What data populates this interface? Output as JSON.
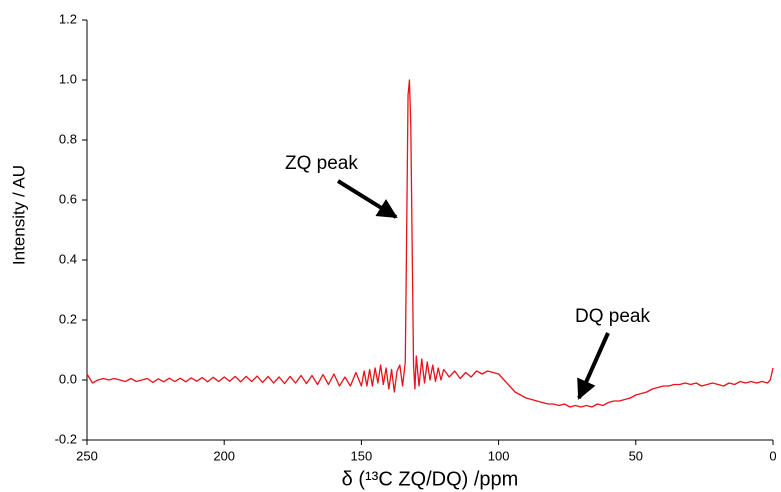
{
  "chart_data": {
    "type": "line",
    "xlabel": "δ (¹³C ZQ/DQ) /ppm",
    "ylabel": "Intensity / AU",
    "annotations": [
      "ZQ peak",
      "DQ peak"
    ],
    "color": "#e8121a",
    "xlim": [
      250,
      0
    ],
    "ylim": [
      -0.2,
      1.2
    ],
    "xticks": [
      250,
      200,
      150,
      100,
      50,
      0
    ],
    "yticks": [
      -0.2,
      {
        "value": 0,
        "label": "0.0"
      },
      0.2,
      0.4,
      0.6,
      0.8,
      {
        "value": 1,
        "label": "1.0"
      },
      1.2
    ],
    "x": [
      250,
      248,
      246,
      244,
      242,
      240,
      238,
      236,
      234,
      232,
      230,
      228,
      226,
      224,
      222,
      220,
      218,
      216,
      214,
      212,
      210,
      208,
      206,
      204,
      202,
      200,
      198,
      196,
      194,
      192,
      190,
      188,
      186,
      184,
      182,
      180,
      178,
      176,
      174,
      172,
      170,
      168,
      166,
      164,
      162,
      160,
      158,
      156,
      154,
      152,
      150,
      149,
      148,
      147,
      146,
      145,
      144,
      143,
      142,
      141,
      140,
      139,
      138,
      137,
      136,
      135,
      134,
      133.5,
      133,
      132.5,
      132,
      131.5,
      131,
      130.5,
      130,
      129,
      128,
      127,
      126,
      125,
      124,
      123,
      122,
      121,
      120,
      118,
      116,
      114,
      112,
      110,
      108,
      106,
      104,
      102,
      100,
      98,
      96,
      94,
      92,
      90,
      88,
      86,
      84,
      82,
      80,
      78,
      76,
      74,
      72,
      70,
      68,
      66,
      64,
      62,
      60,
      58,
      56,
      54,
      52,
      50,
      48,
      46,
      44,
      42,
      40,
      38,
      36,
      34,
      32,
      30,
      28,
      26,
      24,
      22,
      20,
      18,
      16,
      14,
      12,
      10,
      8,
      6,
      4,
      2,
      1,
      0
    ],
    "values": [
      0.02,
      -0.01,
      0.0,
      0.005,
      0.0,
      0.005,
      0.0,
      -0.005,
      0.005,
      -0.005,
      0.0,
      0.005,
      -0.008,
      0.004,
      -0.006,
      0.006,
      -0.005,
      0.006,
      -0.006,
      0.007,
      -0.004,
      0.008,
      -0.006,
      0.009,
      -0.005,
      0.01,
      -0.004,
      0.012,
      -0.006,
      0.012,
      -0.005,
      0.013,
      -0.008,
      0.012,
      -0.01,
      0.01,
      -0.012,
      0.012,
      -0.01,
      0.015,
      -0.012,
      0.015,
      -0.015,
      0.018,
      -0.015,
      0.02,
      -0.02,
      0.01,
      -0.02,
      0.025,
      -0.02,
      0.03,
      -0.02,
      0.035,
      -0.02,
      0.04,
      -0.01,
      0.05,
      -0.015,
      0.04,
      -0.03,
      0.035,
      -0.04,
      0.03,
      0.05,
      -0.02,
      0.06,
      0.5,
      0.95,
      1.0,
      0.85,
      0.45,
      0.05,
      -0.03,
      0.08,
      -0.02,
      0.07,
      -0.01,
      0.06,
      0.0,
      0.05,
      -0.005,
      0.04,
      0.0,
      0.035,
      0.01,
      0.03,
      0.005,
      0.025,
      0.01,
      0.03,
      0.02,
      0.03,
      0.025,
      0.02,
      0.0,
      -0.02,
      -0.04,
      -0.05,
      -0.06,
      -0.065,
      -0.07,
      -0.075,
      -0.08,
      -0.08,
      -0.085,
      -0.08,
      -0.09,
      -0.085,
      -0.09,
      -0.085,
      -0.09,
      -0.08,
      -0.085,
      -0.075,
      -0.07,
      -0.07,
      -0.065,
      -0.06,
      -0.05,
      -0.045,
      -0.04,
      -0.03,
      -0.025,
      -0.02,
      -0.02,
      -0.015,
      -0.015,
      -0.01,
      -0.015,
      -0.01,
      -0.02,
      -0.015,
      -0.01,
      -0.015,
      -0.02,
      -0.01,
      -0.015,
      -0.005,
      -0.01,
      -0.005,
      -0.01,
      -0.005,
      -0.01,
      0.0,
      0.04
    ]
  }
}
